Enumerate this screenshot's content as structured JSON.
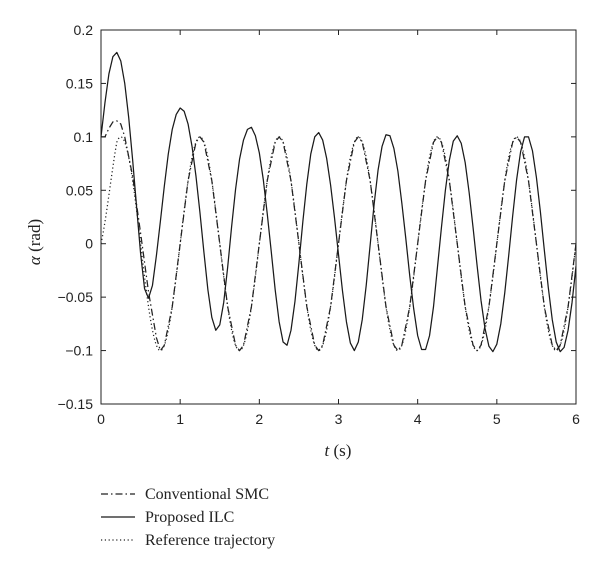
{
  "chart_data": {
    "type": "line",
    "title": "",
    "xlabel": {
      "var": "t",
      "unit": " (s)"
    },
    "ylabel": {
      "var": "α",
      "unit": " (rad)"
    },
    "xlim": [
      0,
      6
    ],
    "ylim": [
      -0.15,
      0.2
    ],
    "grid": false,
    "legend_position": "below-left",
    "x_ticks": [
      "0",
      "1",
      "2",
      "3",
      "4",
      "5",
      "6"
    ],
    "y_ticks": [
      "0.2",
      "0.15",
      "0.1",
      "0.05",
      "0",
      "−0.05",
      "−0.1",
      "−0.15"
    ],
    "reference": {
      "amplitude": 0.1,
      "period": 1.0,
      "sample_step": 0.01
    },
    "series": [
      {
        "name": "Conventional SMC",
        "style": "dashdot",
        "color": "#222222",
        "initial_value": 0.1,
        "x": [
          0,
          0.05,
          0.1,
          0.15,
          0.2,
          0.25,
          0.3,
          0.4,
          0.5,
          0.6,
          0.7,
          0.75,
          0.8,
          0.9,
          1.0,
          1.1,
          1.2,
          1.25,
          1.3,
          1.4,
          1.5,
          1.6,
          1.7,
          1.75,
          1.8,
          1.9,
          2.0,
          2.1,
          2.2,
          2.25,
          2.3,
          2.4,
          2.5,
          2.6,
          2.7,
          2.75,
          2.8,
          2.9,
          3.0,
          3.1,
          3.2,
          3.25,
          3.3,
          3.4,
          3.5,
          3.6,
          3.7,
          3.75,
          3.8,
          3.9,
          4.0,
          4.1,
          4.2,
          4.25,
          4.3,
          4.4,
          4.5,
          4.6,
          4.7,
          4.75,
          4.8,
          4.9,
          5.0,
          5.1,
          5.2,
          5.25,
          5.3,
          5.4,
          5.5,
          5.6,
          5.7,
          5.75,
          5.8,
          5.9,
          6.0
        ],
        "y": [
          0.1,
          0.1,
          0.108,
          0.114,
          0.115,
          0.112,
          0.1,
          0.063,
          0.01,
          -0.045,
          -0.088,
          -0.1,
          -0.095,
          -0.059,
          0.0,
          0.059,
          0.095,
          0.1,
          0.095,
          0.059,
          0.0,
          -0.059,
          -0.095,
          -0.1,
          -0.095,
          -0.059,
          0.0,
          0.059,
          0.095,
          0.1,
          0.095,
          0.059,
          0.0,
          -0.059,
          -0.095,
          -0.1,
          -0.095,
          -0.059,
          0.0,
          0.059,
          0.095,
          0.1,
          0.095,
          0.059,
          0.0,
          -0.059,
          -0.095,
          -0.1,
          -0.095,
          -0.059,
          0.0,
          0.059,
          0.095,
          0.1,
          0.095,
          0.059,
          0.0,
          -0.059,
          -0.095,
          -0.1,
          -0.095,
          -0.059,
          0.0,
          0.059,
          0.095,
          0.1,
          0.095,
          0.059,
          0.0,
          -0.059,
          -0.095,
          -0.1,
          -0.095,
          -0.059,
          0.0
        ]
      },
      {
        "name": "Proposed ILC",
        "style": "solid",
        "color": "#1a1a1a",
        "x": [
          0,
          0.05,
          0.1,
          0.15,
          0.2,
          0.25,
          0.3,
          0.35,
          0.4,
          0.45,
          0.5,
          0.55,
          0.6,
          0.65,
          0.7,
          0.75,
          0.8,
          0.85,
          0.9,
          0.95,
          1.0,
          1.05,
          1.1,
          1.15,
          1.2,
          1.25,
          1.3,
          1.35,
          1.4,
          1.45,
          1.5,
          1.55,
          1.6,
          1.65,
          1.7,
          1.75,
          1.8,
          1.85,
          1.9,
          1.95,
          2.0,
          2.05,
          2.1,
          2.15,
          2.2,
          2.25,
          2.3,
          2.35,
          2.4,
          2.45,
          2.5,
          2.55,
          2.6,
          2.65,
          2.7,
          2.75,
          2.8,
          2.85,
          2.9,
          2.95,
          3.0,
          3.05,
          3.1,
          3.15,
          3.2,
          3.25,
          3.3,
          3.35,
          3.4,
          3.45,
          3.5,
          3.55,
          3.6,
          3.65,
          3.7,
          3.75,
          3.8,
          3.85,
          3.9,
          3.95,
          4.0,
          4.05,
          4.1,
          4.15,
          4.2,
          4.25,
          4.3,
          4.35,
          4.4,
          4.45,
          4.5,
          4.55,
          4.6,
          4.65,
          4.7,
          4.75,
          4.8,
          4.85,
          4.9,
          4.95,
          5.0,
          5.05,
          5.1,
          5.15,
          5.2,
          5.25,
          5.3,
          5.35,
          5.4,
          5.45,
          5.5,
          5.55,
          5.6,
          5.65,
          5.7,
          5.75,
          5.8,
          5.85,
          5.9,
          5.95,
          6.0
        ],
        "y": [
          0.1,
          0.132,
          0.159,
          0.175,
          0.179,
          0.171,
          0.15,
          0.118,
          0.078,
          0.034,
          -0.009,
          -0.042,
          -0.051,
          -0.039,
          -0.011,
          0.021,
          0.054,
          0.084,
          0.107,
          0.121,
          0.127,
          0.124,
          0.112,
          0.091,
          0.063,
          0.029,
          -0.008,
          -0.043,
          -0.069,
          -0.081,
          -0.076,
          -0.055,
          -0.022,
          0.016,
          0.051,
          0.079,
          0.097,
          0.107,
          0.109,
          0.101,
          0.085,
          0.06,
          0.028,
          -0.007,
          -0.043,
          -0.073,
          -0.092,
          -0.095,
          -0.081,
          -0.054,
          -0.018,
          0.021,
          0.056,
          0.084,
          0.1,
          0.104,
          0.097,
          0.08,
          0.055,
          0.024,
          -0.01,
          -0.044,
          -0.073,
          -0.093,
          -0.1,
          -0.092,
          -0.071,
          -0.039,
          -0.001,
          0.037,
          0.069,
          0.091,
          0.102,
          0.101,
          0.089,
          0.068,
          0.038,
          0.005,
          -0.03,
          -0.061,
          -0.086,
          -0.099,
          -0.099,
          -0.086,
          -0.059,
          -0.022,
          0.015,
          0.05,
          0.078,
          0.096,
          0.101,
          0.094,
          0.076,
          0.048,
          0.015,
          -0.02,
          -0.053,
          -0.079,
          -0.096,
          -0.101,
          -0.094,
          -0.075,
          -0.046,
          -0.011,
          0.026,
          0.06,
          0.086,
          0.1,
          0.1,
          0.087,
          0.062,
          0.03,
          -0.006,
          -0.041,
          -0.071,
          -0.092,
          -0.101,
          -0.097,
          -0.081,
          -0.055,
          -0.021
        ]
      },
      {
        "name": "Reference trajectory",
        "style": "dotted",
        "color": "#222222",
        "initial_value": 0.0
      }
    ]
  }
}
